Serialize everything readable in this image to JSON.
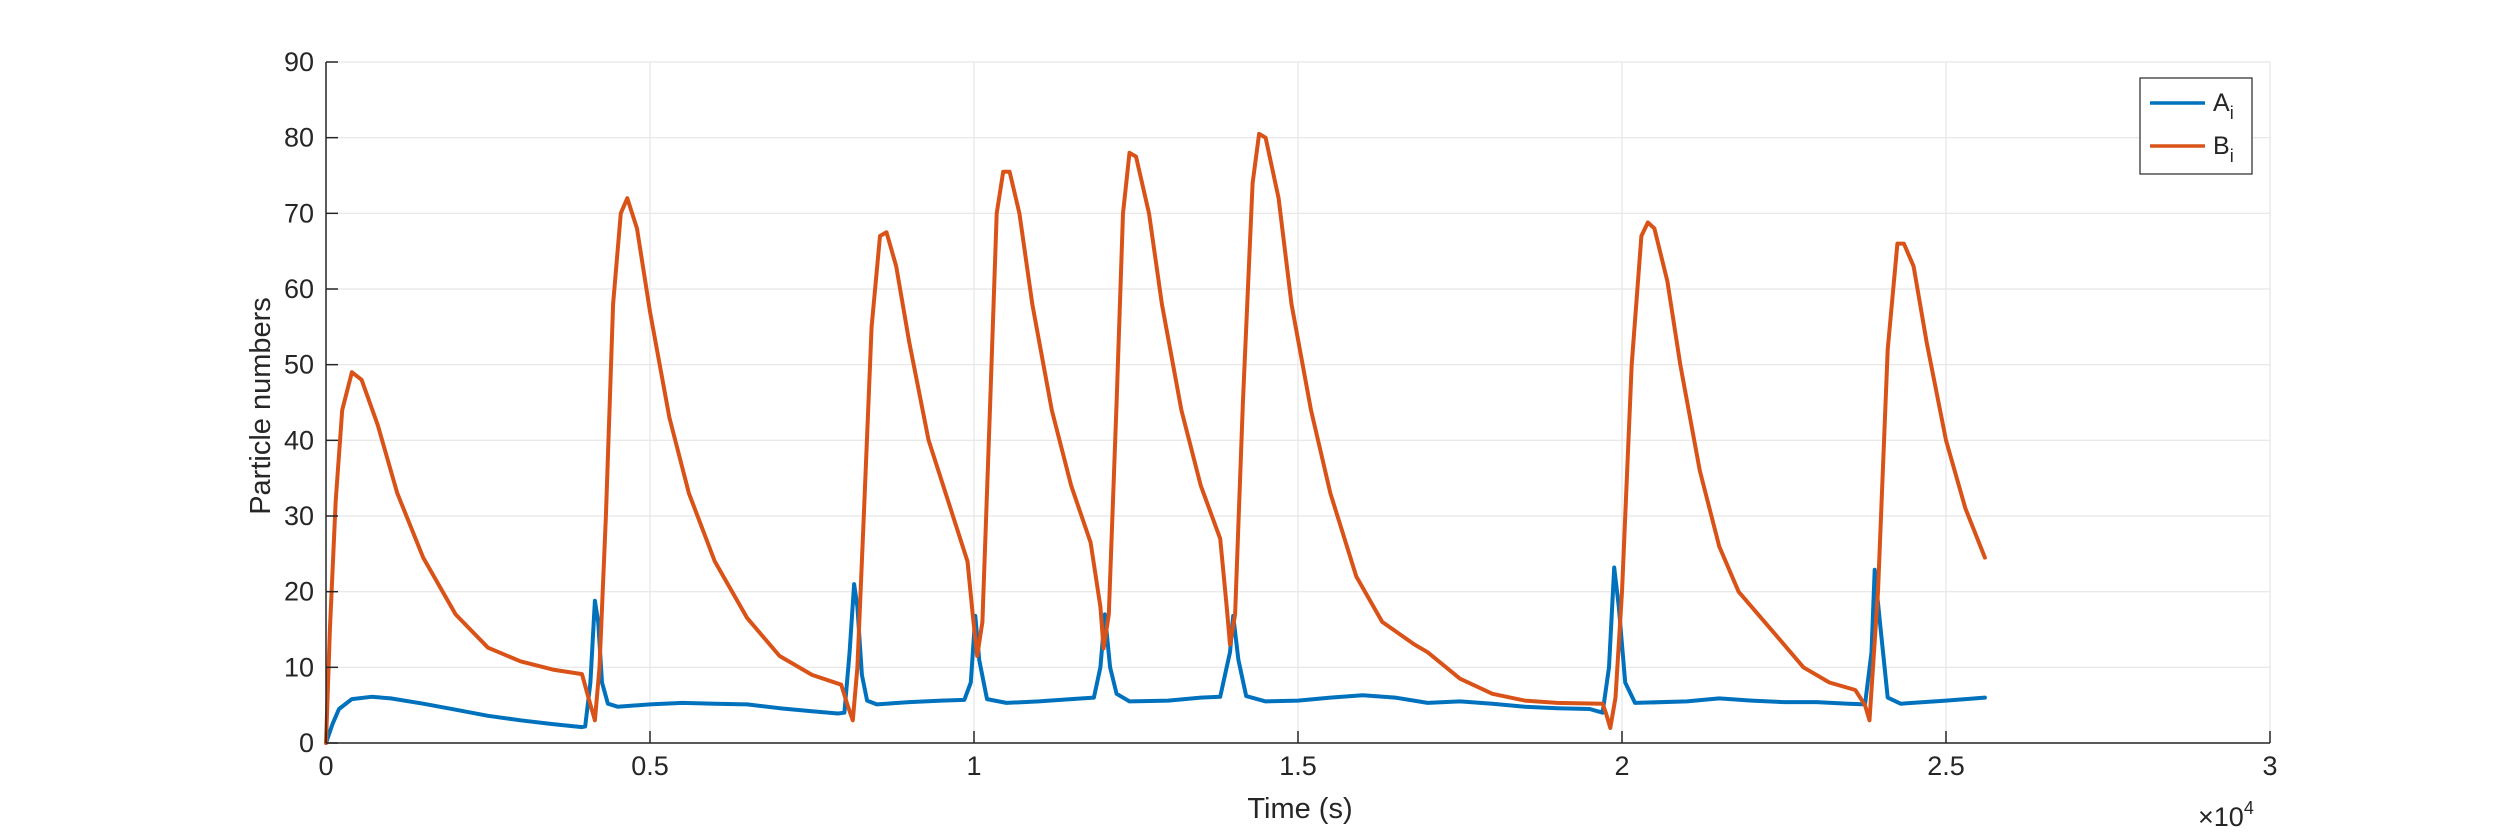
{
  "chart_data": {
    "type": "line",
    "title": "",
    "xlabel": "Time (s)",
    "ylabel": "Particle numbers",
    "xlim": [
      0,
      30000
    ],
    "ylim": [
      0,
      90
    ],
    "x_ticks": [
      0,
      5000,
      10000,
      15000,
      20000,
      25000,
      30000
    ],
    "x_tick_labels": [
      "0",
      "0.5",
      "1",
      "1.5",
      "2",
      "2.5",
      "3"
    ],
    "x_exponent_label": "×10",
    "x_exponent_power": "4",
    "y_ticks": [
      0,
      10,
      20,
      30,
      40,
      50,
      60,
      70,
      80,
      90
    ],
    "y_tick_labels": [
      "0",
      "10",
      "20",
      "30",
      "40",
      "50",
      "60",
      "70",
      "80",
      "90"
    ],
    "grid": true,
    "legend_placement": "top-right",
    "series": [
      {
        "name": "A",
        "name_subscript": "i",
        "color": "#0072BD",
        "points": [
          [
            0,
            0
          ],
          [
            100,
            2.5
          ],
          [
            200,
            4.5
          ],
          [
            400,
            5.8
          ],
          [
            700,
            6.1
          ],
          [
            1000,
            5.9
          ],
          [
            1500,
            5.2
          ],
          [
            2000,
            4.4
          ],
          [
            2500,
            3.6
          ],
          [
            3000,
            3
          ],
          [
            3500,
            2.5
          ],
          [
            3950,
            2.1
          ],
          [
            4000,
            2.2
          ],
          [
            4080,
            8
          ],
          [
            4150,
            18.8
          ],
          [
            4200,
            16
          ],
          [
            4260,
            8
          ],
          [
            4350,
            5.2
          ],
          [
            4500,
            4.8
          ],
          [
            5000,
            5.1
          ],
          [
            5500,
            5.3
          ],
          [
            6000,
            5.2
          ],
          [
            6500,
            5.1
          ],
          [
            7000,
            4.6
          ],
          [
            7500,
            4.2
          ],
          [
            7900,
            3.9
          ],
          [
            8000,
            4
          ],
          [
            8080,
            12
          ],
          [
            8150,
            21
          ],
          [
            8200,
            18
          ],
          [
            8270,
            9
          ],
          [
            8350,
            5.6
          ],
          [
            8500,
            5.1
          ],
          [
            9000,
            5.4
          ],
          [
            9500,
            5.6
          ],
          [
            9850,
            5.7
          ],
          [
            9950,
            8
          ],
          [
            10020,
            16.8
          ],
          [
            10080,
            11
          ],
          [
            10200,
            5.8
          ],
          [
            10500,
            5.3
          ],
          [
            11000,
            5.5
          ],
          [
            11500,
            5.8
          ],
          [
            11850,
            6
          ],
          [
            11950,
            10
          ],
          [
            12020,
            17
          ],
          [
            12100,
            10
          ],
          [
            12200,
            6.5
          ],
          [
            12400,
            5.5
          ],
          [
            13000,
            5.6
          ],
          [
            13500,
            6
          ],
          [
            13800,
            6.1
          ],
          [
            13950,
            12
          ],
          [
            14000,
            16.8
          ],
          [
            14080,
            11
          ],
          [
            14200,
            6.2
          ],
          [
            14500,
            5.5
          ],
          [
            15000,
            5.6
          ],
          [
            15500,
            6
          ],
          [
            16000,
            6.3
          ],
          [
            16500,
            6
          ],
          [
            17000,
            5.3
          ],
          [
            17500,
            5.5
          ],
          [
            18000,
            5.2
          ],
          [
            18500,
            4.8
          ],
          [
            19000,
            4.6
          ],
          [
            19500,
            4.5
          ],
          [
            19700,
            4
          ],
          [
            19800,
            10
          ],
          [
            19880,
            23.2
          ],
          [
            19950,
            18
          ],
          [
            20050,
            8
          ],
          [
            20200,
            5.3
          ],
          [
            21000,
            5.5
          ],
          [
            21500,
            5.9
          ],
          [
            22000,
            5.6
          ],
          [
            22500,
            5.4
          ],
          [
            23000,
            5.4
          ],
          [
            23500,
            5.2
          ],
          [
            23750,
            5.1
          ],
          [
            23850,
            12
          ],
          [
            23900,
            22.9
          ],
          [
            23980,
            16
          ],
          [
            24100,
            6
          ],
          [
            24300,
            5.2
          ],
          [
            25000,
            5.6
          ],
          [
            25600,
            6
          ]
        ]
      },
      {
        "name": "B",
        "name_subscript": "i",
        "color": "#D95319",
        "points": [
          [
            0,
            0
          ],
          [
            60,
            15
          ],
          [
            150,
            32
          ],
          [
            250,
            44
          ],
          [
            400,
            49
          ],
          [
            550,
            48
          ],
          [
            800,
            42
          ],
          [
            1100,
            33
          ],
          [
            1500,
            24.5
          ],
          [
            2000,
            17
          ],
          [
            2500,
            12.6
          ],
          [
            3000,
            10.8
          ],
          [
            3500,
            9.7
          ],
          [
            3950,
            9.1
          ],
          [
            4050,
            6
          ],
          [
            4150,
            3
          ],
          [
            4220,
            10
          ],
          [
            4320,
            30
          ],
          [
            4430,
            58
          ],
          [
            4550,
            70
          ],
          [
            4650,
            72
          ],
          [
            4800,
            68
          ],
          [
            5000,
            57
          ],
          [
            5300,
            43
          ],
          [
            5600,
            33
          ],
          [
            6000,
            24
          ],
          [
            6500,
            16.5
          ],
          [
            7000,
            11.5
          ],
          [
            7500,
            9
          ],
          [
            7950,
            7.7
          ],
          [
            8050,
            5
          ],
          [
            8130,
            3
          ],
          [
            8200,
            10
          ],
          [
            8300,
            30
          ],
          [
            8420,
            55
          ],
          [
            8550,
            67
          ],
          [
            8650,
            67.5
          ],
          [
            8800,
            63
          ],
          [
            9000,
            53
          ],
          [
            9300,
            40
          ],
          [
            9600,
            32
          ],
          [
            9900,
            24
          ],
          [
            9980,
            17
          ],
          [
            10050,
            11.5
          ],
          [
            10130,
            16
          ],
          [
            10250,
            45
          ],
          [
            10350,
            70
          ],
          [
            10450,
            75.5
          ],
          [
            10550,
            75.5
          ],
          [
            10700,
            70
          ],
          [
            10900,
            58
          ],
          [
            11200,
            44
          ],
          [
            11500,
            34
          ],
          [
            11800,
            26.5
          ],
          [
            11950,
            18
          ],
          [
            12000,
            12.5
          ],
          [
            12080,
            17
          ],
          [
            12200,
            45
          ],
          [
            12300,
            70
          ],
          [
            12400,
            78
          ],
          [
            12500,
            77.5
          ],
          [
            12700,
            70
          ],
          [
            12900,
            58
          ],
          [
            13200,
            44
          ],
          [
            13500,
            34
          ],
          [
            13800,
            27
          ],
          [
            13900,
            18
          ],
          [
            13950,
            13
          ],
          [
            14030,
            17
          ],
          [
            14150,
            45
          ],
          [
            14300,
            74
          ],
          [
            14400,
            80.5
          ],
          [
            14500,
            80
          ],
          [
            14700,
            72
          ],
          [
            14900,
            58
          ],
          [
            15200,
            44
          ],
          [
            15500,
            33
          ],
          [
            15900,
            22
          ],
          [
            16300,
            16
          ],
          [
            16800,
            13
          ],
          [
            17000,
            12
          ],
          [
            17500,
            8.5
          ],
          [
            18000,
            6.5
          ],
          [
            18500,
            5.6
          ],
          [
            19000,
            5.3
          ],
          [
            19700,
            5.2
          ],
          [
            19750,
            4
          ],
          [
            19820,
            2
          ],
          [
            19900,
            6
          ],
          [
            20000,
            20
          ],
          [
            20150,
            50
          ],
          [
            20300,
            67
          ],
          [
            20400,
            68.8
          ],
          [
            20500,
            68
          ],
          [
            20700,
            61
          ],
          [
            20900,
            50
          ],
          [
            21200,
            36
          ],
          [
            21500,
            26
          ],
          [
            21800,
            20
          ],
          [
            22200,
            16
          ],
          [
            22500,
            13
          ],
          [
            22800,
            10
          ],
          [
            23200,
            8
          ],
          [
            23600,
            7
          ],
          [
            23750,
            5
          ],
          [
            23820,
            3
          ],
          [
            23950,
            20
          ],
          [
            24100,
            52
          ],
          [
            24250,
            66
          ],
          [
            24350,
            66
          ],
          [
            24500,
            63
          ],
          [
            24700,
            53
          ],
          [
            25000,
            40
          ],
          [
            25300,
            31
          ],
          [
            25600,
            24.5
          ]
        ]
      }
    ]
  }
}
